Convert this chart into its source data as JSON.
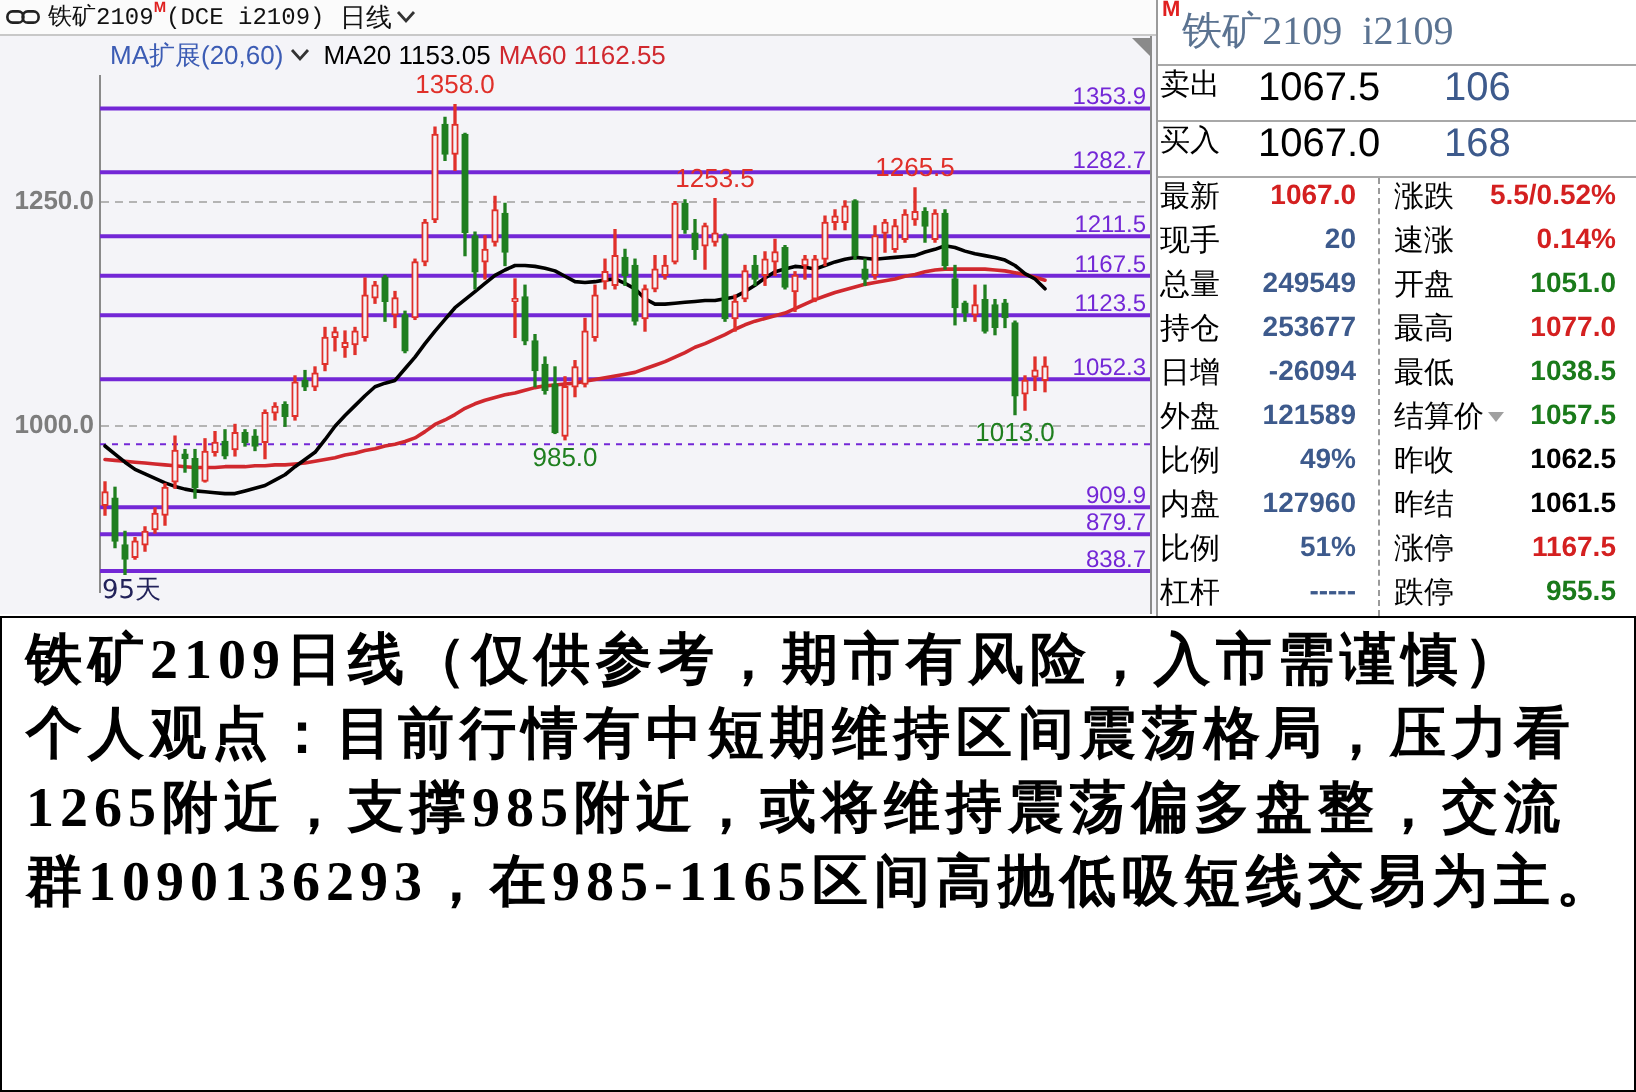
{
  "chart_data": [
    {
      "type": "candlestick",
      "title": "铁矿2109$^{M}$(DCE i2109)",
      "subtitle": "日线",
      "legend_title": "MA扩展(20,60)",
      "legend": "top",
      "categories": [
        null,
        null,
        null,
        null,
        null,
        null,
        null,
        null,
        null,
        null,
        null,
        null,
        null,
        null,
        null,
        null,
        null,
        null,
        null,
        null,
        null,
        null,
        null,
        null,
        null,
        null,
        null,
        null,
        null,
        null,
        null,
        null,
        null,
        null,
        null,
        null,
        null,
        null,
        null,
        null,
        null,
        null,
        null,
        null,
        null,
        null,
        null,
        null,
        null,
        null,
        null,
        null,
        null,
        null,
        null,
        null,
        null,
        null,
        null,
        null,
        null,
        null,
        null,
        null,
        null,
        null,
        null,
        null,
        null,
        null,
        null,
        null,
        null,
        null,
        null,
        null,
        null,
        null,
        null,
        null,
        null,
        null,
        null,
        null,
        null,
        null,
        null,
        null,
        null,
        null,
        null,
        null,
        null,
        null,
        null
      ],
      "ohlc": [
        [
          912,
          938,
          901,
          927
        ],
        [
          920,
          932,
          865,
          872
        ],
        [
          868,
          883,
          835,
          852
        ],
        [
          854,
          876,
          852,
          872
        ],
        [
          868,
          888,
          861,
          883
        ],
        [
          885,
          909,
          881,
          903
        ],
        [
          901,
          936,
          890,
          932
        ],
        [
          938,
          989,
          931,
          973
        ],
        [
          969,
          974,
          949,
          964
        ],
        [
          964,
          974,
          920,
          932
        ],
        [
          939,
          986,
          938,
          972
        ],
        [
          971,
          994,
          967,
          982
        ],
        [
          983,
          996,
          964,
          967
        ],
        [
          974,
          1002,
          967,
          993
        ],
        [
          993,
          996,
          978,
          982
        ],
        [
          989,
          996,
          973,
          978
        ],
        [
          982,
          1018,
          964,
          1015
        ],
        [
          1015,
          1026,
          1007,
          1022
        ],
        [
          1024,
          1027,
          1000,
          1011
        ],
        [
          1011,
          1056,
          1007,
          1049
        ],
        [
          1051,
          1062,
          1040,
          1044
        ],
        [
          1044,
          1066,
          1040,
          1059
        ],
        [
          1069,
          1110,
          1062,
          1099
        ],
        [
          1099,
          1110,
          1084,
          1105
        ],
        [
          1088,
          1106,
          1077,
          1093
        ],
        [
          1091,
          1110,
          1080,
          1106
        ],
        [
          1099,
          1165,
          1095,
          1146
        ],
        [
          1143,
          1161,
          1137,
          1157
        ],
        [
          1166,
          1168,
          1117,
          1139
        ],
        [
          1124,
          1150,
          1110,
          1143
        ],
        [
          1124,
          1128,
          1082,
          1084
        ],
        [
          1121,
          1186,
          1119,
          1183
        ],
        [
          1183,
          1230,
          1179,
          1227
        ],
        [
          1230,
          1333,
          1227,
          1325
        ],
        [
          1336,
          1344,
          1296,
          1303
        ],
        [
          1303,
          1358.0,
          1285,
          1336
        ],
        [
          1325,
          1326,
          1190,
          1216
        ],
        [
          1212,
          1216,
          1153,
          1172
        ],
        [
          1183,
          1212,
          1164,
          1197
        ],
        [
          1205,
          1256,
          1201,
          1241
        ],
        [
          1237,
          1248,
          1179,
          1194
        ],
        [
          1139,
          1164,
          1099,
          1142
        ],
        [
          1144,
          1157,
          1091,
          1095
        ],
        [
          1095,
          1102,
          1044,
          1062
        ],
        [
          1069,
          1077,
          1036,
          1040
        ],
        [
          1047,
          1066,
          992,
          993
        ],
        [
          989,
          1055,
          985.0,
          1044
        ],
        [
          1044,
          1073,
          1033,
          1066
        ],
        [
          1047,
          1120,
          1044,
          1106
        ],
        [
          1099,
          1157,
          1095,
          1146
        ],
        [
          1161,
          1186,
          1153,
          1172
        ],
        [
          1157,
          1219,
          1153,
          1190
        ],
        [
          1188,
          1197,
          1157,
          1168
        ],
        [
          1179,
          1186,
          1113,
          1117
        ],
        [
          1120,
          1157,
          1106,
          1153
        ],
        [
          1153,
          1190,
          1150,
          1175
        ],
        [
          1168,
          1190,
          1164,
          1179
        ],
        [
          1183,
          1250,
          1181,
          1248
        ],
        [
          1248,
          1252,
          1215,
          1219
        ],
        [
          1215,
          1230,
          1186,
          1197
        ],
        [
          1201,
          1226,
          1175,
          1223
        ],
        [
          1205,
          1253.5,
          1201,
          1215
        ],
        [
          1212,
          1214,
          1117,
          1120
        ],
        [
          1120,
          1146,
          1106,
          1139
        ],
        [
          1142,
          1179,
          1139,
          1173
        ],
        [
          1179,
          1190,
          1157,
          1164
        ],
        [
          1168,
          1194,
          1157,
          1186
        ],
        [
          1183,
          1208,
          1168,
          1194
        ],
        [
          1199,
          1201,
          1153,
          1155
        ],
        [
          1150,
          1172,
          1128,
          1168
        ],
        [
          1179,
          1190,
          1164,
          1186
        ],
        [
          1142,
          1190,
          1139,
          1186
        ],
        [
          1186,
          1234,
          1179,
          1227
        ],
        [
          1227,
          1241,
          1219,
          1234
        ],
        [
          1227,
          1251,
          1219,
          1245
        ],
        [
          1251,
          1252,
          1186,
          1190
        ],
        [
          1175,
          1186,
          1157,
          1164
        ],
        [
          1168,
          1223,
          1164,
          1212
        ],
        [
          1215,
          1230,
          1194,
          1227
        ],
        [
          1197,
          1230,
          1194,
          1223
        ],
        [
          1208,
          1241,
          1205,
          1236
        ],
        [
          1230,
          1265.5,
          1224,
          1239
        ],
        [
          1239,
          1243,
          1205,
          1223
        ],
        [
          1208,
          1241,
          1205,
          1237
        ],
        [
          1237,
          1241,
          1175,
          1179
        ],
        [
          1164,
          1179,
          1113,
          1132
        ],
        [
          1137,
          1139,
          1117,
          1126
        ],
        [
          1124,
          1157,
          1117,
          1135
        ],
        [
          1141,
          1157,
          1104,
          1106
        ],
        [
          1135,
          1141,
          1102,
          1110
        ],
        [
          1137,
          1141,
          1110,
          1121
        ],
        [
          1115,
          1117,
          1013.0,
          1034
        ],
        [
          1036,
          1056,
          1018,
          1051
        ],
        [
          1055,
          1077,
          1040,
          1062.5
        ],
        [
          1051.0,
          1077.0,
          1038.5,
          1067.0
        ]
      ],
      "colors": [
        "#e0302a",
        "#1f7f1f",
        "#1f7f1f",
        "#e0302a",
        "#e0302a",
        "#e0302a",
        "#e0302a",
        "#e0302a",
        "#1f7f1f",
        "#1f7f1f",
        "#e0302a",
        "#e0302a",
        "#1f7f1f",
        "#e0302a",
        "#1f7f1f",
        "#1f7f1f",
        "#e0302a",
        "#e0302a",
        "#1f7f1f",
        "#e0302a",
        "#1f7f1f",
        "#e0302a",
        "#e0302a",
        "#e0302a",
        "#e0302a",
        "#e0302a",
        "#e0302a",
        "#e0302a",
        "#1f7f1f",
        "#e0302a",
        "#1f7f1f",
        "#e0302a",
        "#e0302a",
        "#e0302a",
        "#1f7f1f",
        "#e0302a",
        "#1f7f1f",
        "#1f7f1f",
        "#e0302a",
        "#e0302a",
        "#1f7f1f",
        "#e0302a",
        "#1f7f1f",
        "#1f7f1f",
        "#1f7f1f",
        "#1f7f1f",
        "#e0302a",
        "#e0302a",
        "#e0302a",
        "#e0302a",
        "#e0302a",
        "#e0302a",
        "#1f7f1f",
        "#1f7f1f",
        "#e0302a",
        "#e0302a",
        "#e0302a",
        "#e0302a",
        "#1f7f1f",
        "#1f7f1f",
        "#e0302a",
        "#e0302a",
        "#1f7f1f",
        "#e0302a",
        "#e0302a",
        "#1f7f1f",
        "#e0302a",
        "#e0302a",
        "#1f7f1f",
        "#e0302a",
        "#e0302a",
        "#e0302a",
        "#e0302a",
        "#e0302a",
        "#e0302a",
        "#1f7f1f",
        "#1f7f1f",
        "#e0302a",
        "#e0302a",
        "#e0302a",
        "#e0302a",
        "#e0302a",
        "#1f7f1f",
        "#e0302a",
        "#1f7f1f",
        "#1f7f1f",
        "#1f7f1f",
        "#e0302a",
        "#1f7f1f",
        "#1f7f1f",
        "#1f7f1f",
        "#1f7f1f",
        "#e0302a",
        "#e0302a",
        "#e0302a"
      ],
      "series": [
        {
          "type": "line",
          "name": "MA20 1153.05",
          "color": "#000000",
          "values": [
            978,
            969,
            960,
            952,
            947,
            942,
            937,
            933,
            930,
            928,
            927,
            926,
            925,
            925,
            928,
            931,
            934,
            940,
            946,
            955,
            963,
            971,
            985,
            1000,
            1012,
            1023,
            1034,
            1044,
            1048,
            1051,
            1064,
            1077,
            1092,
            1106,
            1119,
            1132,
            1141,
            1150,
            1159,
            1168,
            1174,
            1179,
            1179,
            1178,
            1176,
            1173,
            1167,
            1161,
            1160,
            1161,
            1163,
            1164,
            1159,
            1153,
            1142,
            1136,
            1136,
            1137,
            1138,
            1139,
            1140,
            1140,
            1142,
            1144,
            1150,
            1157,
            1165,
            1172,
            1175,
            1178,
            1177,
            1175,
            1179,
            1183,
            1186,
            1188,
            1187,
            1186,
            1187,
            1188,
            1189,
            1190,
            1194,
            1197,
            1201,
            1199,
            1195,
            1192,
            1190,
            1188,
            1185,
            1179,
            1170,
            1164,
            1153.05
          ]
        },
        {
          "type": "line",
          "name": "MA60 1162.55",
          "color": "#d0282e",
          "values": [
            963,
            962,
            961,
            960,
            959,
            958,
            957,
            956,
            955,
            954,
            954,
            954,
            955,
            955,
            955,
            956,
            956,
            957,
            957,
            958,
            959,
            961,
            963,
            965,
            968,
            970,
            973,
            975,
            978,
            980,
            983,
            987,
            994,
            1002,
            1007,
            1013,
            1020,
            1025,
            1029,
            1032,
            1035,
            1037,
            1040,
            1043,
            1045,
            1046,
            1047,
            1048,
            1050,
            1052,
            1054,
            1056,
            1058,
            1060,
            1064,
            1068,
            1072,
            1077,
            1082,
            1088,
            1092,
            1097,
            1102,
            1108,
            1113,
            1117,
            1120,
            1123,
            1126,
            1131,
            1136,
            1141,
            1145,
            1149,
            1152,
            1155,
            1158,
            1160,
            1162,
            1164,
            1167,
            1169,
            1172,
            1174,
            1175,
            1175,
            1175,
            1175,
            1175,
            1174,
            1173,
            1171,
            1169,
            1166,
            1162.55
          ]
        }
      ],
      "ylim": [
        815,
        1390
      ],
      "yticks": [
        {
          "value": 1000,
          "label": "1000.0"
        },
        {
          "value": 1250,
          "label": "1250.0"
        }
      ],
      "grid": "y",
      "ref_lines": [
        {
          "axis": "y",
          "value": 1353.9,
          "label": "1353.9",
          "color": "#7327d6"
        },
        {
          "axis": "y",
          "value": 1282.7,
          "label": "1282.7",
          "color": "#7327d6"
        },
        {
          "axis": "y",
          "value": 1211.5,
          "label": "1211.5",
          "color": "#7327d6"
        },
        {
          "axis": "y",
          "value": 1167.5,
          "label": "1167.5",
          "color": "#7327d6"
        },
        {
          "axis": "y",
          "value": 1123.5,
          "label": "1123.5",
          "color": "#7327d6"
        },
        {
          "axis": "y",
          "value": 1052.3,
          "label": "1052.3",
          "color": "#7327d6"
        },
        {
          "axis": "y",
          "value": 909.9,
          "label": "909.9",
          "color": "#7327d6"
        },
        {
          "axis": "y",
          "value": 879.7,
          "label": "879.7",
          "color": "#7327d6"
        },
        {
          "axis": "y",
          "value": 838.7,
          "label": "838.7",
          "color": "#7327d6"
        },
        {
          "axis": "y",
          "value": 980,
          "color": "#7327d6",
          "line_style": "dashed"
        }
      ],
      "annotations": [
        {
          "text": "1358.0",
          "y": 1358.0
        },
        {
          "text": "1253.5",
          "y": 1253.5
        },
        {
          "text": "1265.5",
          "y": 1265.5
        },
        {
          "text": "985.0",
          "y": 985.0
        },
        {
          "text": "1013.0",
          "y": 1013.0
        },
        "95天",
        "铁矿2109日线（仅供参考，期市有风险，入市需谨慎）",
        "个人观点：目前行情有中短期维持区间震荡格局，压力看1265附近，支撑985附近，或将维持震荡偏多盘整，交流群1090136293，在985-1165区间高抛低吸短线交易为主。"
      ]
    },
    {
      "type": "other",
      "title": "$^{M}$铁矿2109  i2109",
      "annotations": [
        "卖出",
        "1067.5",
        "106",
        "买入",
        "1067.0",
        "168",
        "最新",
        "1067.0",
        "涨跌",
        "5.5/0.52%",
        "现手",
        "20",
        "速涨",
        "0.14%",
        "总量",
        "249549",
        "开盘",
        "1051.0",
        "持仓",
        "253677",
        "最高",
        "1077.0",
        "日增",
        "-26094",
        "最低",
        "1038.5",
        "外盘",
        "121589",
        "结算价",
        "1057.5",
        "比例",
        "49%",
        "昨收",
        "1062.5",
        "内盘",
        "127960",
        "昨结",
        "1061.5",
        "比例",
        "51%",
        "涨停",
        "1167.5",
        "杠杆",
        "-----",
        "跌停",
        "955.5"
      ],
      "colors": [
        "#000000",
        "#000000",
        "#3d5a8c",
        "#000000",
        "#000000",
        "#3d5a8c",
        "#000000",
        "#d42020",
        "#000000",
        "#d42020",
        "#000000",
        "#3d5a8c",
        "#000000",
        "#d42020",
        "#000000",
        "#3d5a8c",
        "#000000",
        "#1a7a1a",
        "#000000",
        "#3d5a8c",
        "#000000",
        "#d42020",
        "#000000",
        "#3d5a8c",
        "#000000",
        "#1a7a1a",
        "#000000",
        "#3d5a8c",
        "#000000",
        "#1a7a1a",
        "#000000",
        "#3d5a8c",
        "#000000",
        "#000000",
        "#000000",
        "#3d5a8c",
        "#000000",
        "#000000",
        "#000000",
        "#3d5a8c",
        "#000000",
        "#d42020",
        "#000000",
        "#3d5a8c",
        "#000000",
        "#1a7a1a"
      ]
    }
  ]
}
